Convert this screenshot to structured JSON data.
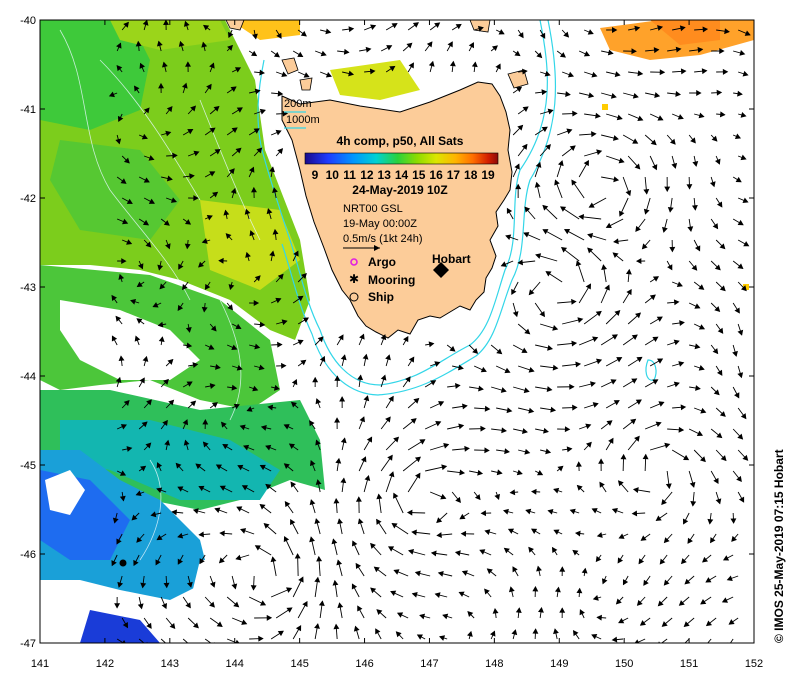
{
  "map": {
    "lon_range": [
      141,
      152
    ],
    "lat_range": [
      -47,
      -40
    ],
    "x_ticks": [
      "141",
      "142",
      "143",
      "144",
      "145",
      "146",
      "147",
      "148",
      "149",
      "150",
      "151",
      "152"
    ],
    "y_ticks": [
      "-40",
      "-41",
      "-42",
      "-43",
      "-44",
      "-45",
      "-46",
      "-47"
    ],
    "contours": {
      "c200": "200m",
      "c1000": "1000m",
      "color": "#33d6e8"
    },
    "product": {
      "title": "4h comp, p50, All Sats",
      "colorbar_labels": [
        "9",
        "10",
        "11",
        "12",
        "13",
        "14",
        "15",
        "16",
        "17",
        "18",
        "19"
      ],
      "colormap": [
        "#1a0a8c",
        "#1e3cff",
        "#0096ff",
        "#00d2d2",
        "#2ad23c",
        "#8cdc00",
        "#dce600",
        "#ffb400",
        "#ff6e00",
        "#d21e00",
        "#8c0a0a"
      ],
      "date": "24-May-2019 10Z"
    },
    "currents": {
      "source": "NRT00 GSL",
      "date": "19-May 00:00Z",
      "scale": "0.5m/s (1kt 24h)"
    },
    "markers": [
      {
        "label": "Argo",
        "symbol": "magenta-circle-icon"
      },
      {
        "label": "Mooring",
        "symbol": "star-icon"
      },
      {
        "label": "Ship",
        "symbol": "open-circle-icon"
      }
    ],
    "city": "Hobart",
    "land_color": "#fccc99",
    "credit": "© IMOS 25-May-2019 07:15 Hobart"
  }
}
